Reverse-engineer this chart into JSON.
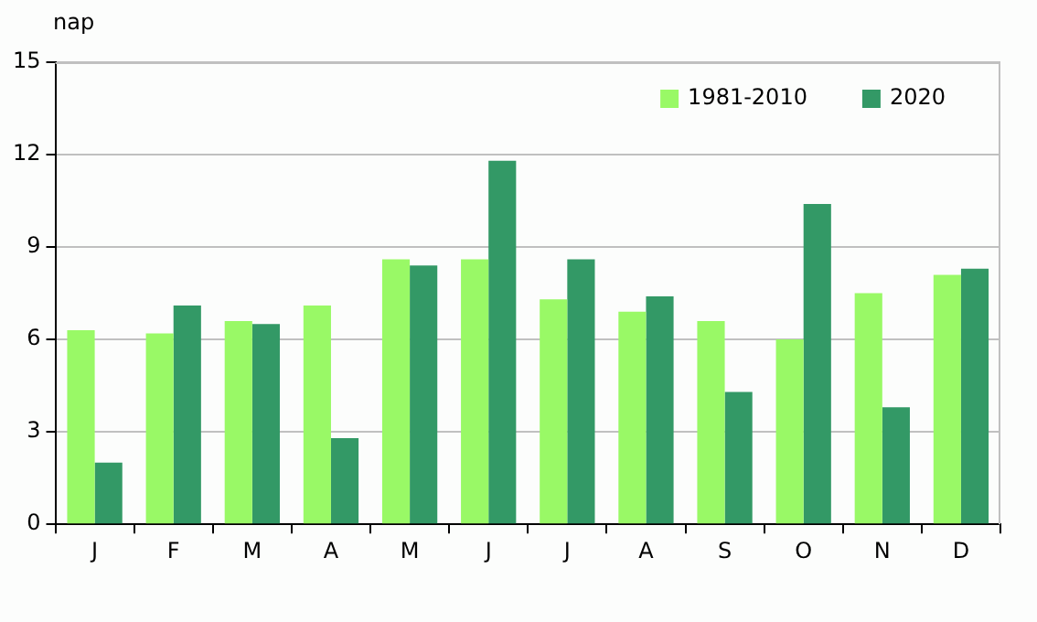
{
  "chart_data": {
    "type": "bar",
    "ylabel": "nap",
    "categories": [
      "J",
      "F",
      "M",
      "A",
      "M",
      "J",
      "J",
      "A",
      "S",
      "O",
      "N",
      "D"
    ],
    "series": [
      {
        "name": "1981-2010",
        "color": "#99f966",
        "values": [
          6.3,
          6.2,
          6.6,
          7.1,
          8.6,
          8.6,
          7.3,
          6.9,
          6.6,
          6.0,
          7.5,
          8.1
        ]
      },
      {
        "name": "2020",
        "color": "#339966",
        "values": [
          2.0,
          7.1,
          6.5,
          2.8,
          8.4,
          11.8,
          8.6,
          7.4,
          4.3,
          10.4,
          3.8,
          8.3
        ]
      }
    ],
    "ylim": [
      0,
      15
    ],
    "yticks": [
      0,
      3,
      6,
      9,
      12,
      15
    ],
    "grid": "y",
    "legend": "top right"
  }
}
